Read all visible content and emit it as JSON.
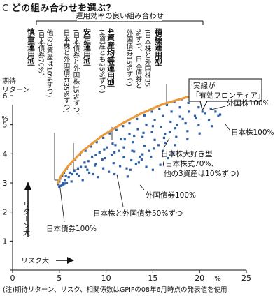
{
  "heading": {
    "letter": "C",
    "text": "どの組み合わせを選ぶ？"
  },
  "note": "(注)期待リターン、リスク、相関係数はGPIFの08年6月時点の発表値を使用",
  "chart_data": {
    "type": "scatter",
    "ylabel": "期待リターン",
    "yunit": "%",
    "xlabel": "リスク大",
    "xunit": "%",
    "ylabel_direction": "リターン大",
    "xlim": [
      0,
      25
    ],
    "ylim": [
      0,
      6.6
    ],
    "xticks": [
      0,
      5,
      10,
      15,
      20,
      25
    ],
    "yticks": [
      0,
      1,
      2,
      3,
      4,
      5,
      6
    ],
    "bracket_label": "運用効率の良い組み合わせ",
    "frontier_label": [
      "実線が",
      "「有効フロンティア」"
    ],
    "colors": {
      "point": "#2f5fa8",
      "frontier": "#e89a3c"
    },
    "efficient_frontier": [
      [
        4.85,
        3.0
      ],
      [
        5.2,
        3.25
      ],
      [
        6.0,
        3.6
      ],
      [
        7.5,
        4.1
      ],
      [
        9.5,
        4.6
      ],
      [
        11.5,
        5.0
      ],
      [
        13.5,
        5.35
      ],
      [
        16.0,
        5.7
      ],
      [
        19.2,
        6.0
      ]
    ],
    "portfolios": [
      {
        "name": "日本債券100%",
        "x": 4.9,
        "y": 2.95
      },
      {
        "name": "日本株と外国債券50%ずつ",
        "x": 10.8,
        "y": 3.85
      },
      {
        "name": "外国債券100%",
        "x": 11.9,
        "y": 3.2
      },
      {
        "name": "日本株大好き型",
        "x": 16.0,
        "y": 4.5
      },
      {
        "name": "外国株100%",
        "x": 19.3,
        "y": 6.0
      },
      {
        "name": "日本株100%",
        "x": 22.2,
        "y": 5.35
      }
    ],
    "annotations": [
      {
        "title": "慎重運用型",
        "lines": [
          "(日本債券70%、",
          "他の3資産は10%ずつ)"
        ]
      },
      {
        "title": "安定運用型",
        "lines": [
          "(日本債券と外国株15%ずつ、",
          "日本株と外国債券35%ずつ)"
        ]
      },
      {
        "title": "4資産均等運用型",
        "lines": [
          "(4資産とも25%ずつ)"
        ]
      },
      {
        "title": "積極運用型",
        "lines": [
          "(日本株と外国株35",
          "%ずつ、日本債券と",
          "外国債券15%ずつ)"
        ]
      }
    ],
    "callouts": [
      {
        "text": "外国株100%"
      },
      {
        "text": "日本株100%"
      },
      {
        "text": "日本株大好き型",
        "lines": [
          "(日本株式70%、",
          "他の3資産は10%ずつ)"
        ]
      },
      {
        "text": "外国債券100%"
      },
      {
        "text": "日本株と外国債券50%ずつ"
      },
      {
        "text": "日本債券100%"
      }
    ],
    "cloud_points": [
      [
        4.9,
        2.95
      ],
      [
        5.0,
        3.05
      ],
      [
        5.1,
        3.15
      ],
      [
        5.3,
        3.25
      ],
      [
        5.5,
        3.35
      ],
      [
        5.8,
        3.5
      ],
      [
        6.2,
        3.65
      ],
      [
        6.7,
        3.8
      ],
      [
        7.2,
        3.95
      ],
      [
        7.8,
        4.1
      ],
      [
        8.4,
        4.25
      ],
      [
        9.0,
        4.4
      ],
      [
        9.7,
        4.55
      ],
      [
        10.4,
        4.7
      ],
      [
        11.1,
        4.82
      ],
      [
        11.8,
        4.95
      ],
      [
        12.5,
        5.05
      ],
      [
        13.3,
        5.2
      ],
      [
        14.1,
        5.32
      ],
      [
        14.9,
        5.45
      ],
      [
        15.7,
        5.55
      ],
      [
        16.5,
        5.68
      ],
      [
        17.3,
        5.78
      ],
      [
        18.1,
        5.88
      ],
      [
        18.9,
        5.96
      ],
      [
        5.4,
        3.0
      ],
      [
        6.0,
        3.2
      ],
      [
        6.6,
        3.4
      ],
      [
        7.3,
        3.55
      ],
      [
        8.1,
        3.75
      ],
      [
        8.9,
        3.95
      ],
      [
        9.8,
        4.15
      ],
      [
        10.7,
        4.35
      ],
      [
        11.6,
        4.5
      ],
      [
        12.5,
        4.68
      ],
      [
        13.4,
        4.85
      ],
      [
        14.3,
        5.0
      ],
      [
        15.2,
        5.15
      ],
      [
        16.1,
        5.3
      ],
      [
        17.0,
        5.45
      ],
      [
        17.9,
        5.6
      ],
      [
        18.8,
        5.75
      ],
      [
        6.3,
        3.05
      ],
      [
        7.1,
        3.25
      ],
      [
        8.0,
        3.45
      ],
      [
        8.9,
        3.65
      ],
      [
        9.9,
        3.85
      ],
      [
        10.9,
        4.05
      ],
      [
        11.9,
        4.22
      ],
      [
        12.9,
        4.4
      ],
      [
        13.9,
        4.58
      ],
      [
        14.9,
        4.75
      ],
      [
        15.9,
        4.92
      ],
      [
        16.9,
        5.1
      ],
      [
        17.9,
        5.28
      ],
      [
        18.9,
        5.45
      ],
      [
        19.9,
        5.6
      ],
      [
        7.5,
        3.1
      ],
      [
        8.6,
        3.3
      ],
      [
        9.7,
        3.5
      ],
      [
        10.8,
        3.68
      ],
      [
        11.9,
        3.88
      ],
      [
        13.0,
        4.08
      ],
      [
        14.1,
        4.28
      ],
      [
        15.2,
        4.48
      ],
      [
        16.3,
        4.68
      ],
      [
        17.4,
        4.88
      ],
      [
        18.5,
        5.05
      ],
      [
        19.6,
        5.22
      ],
      [
        20.6,
        5.38
      ],
      [
        9.1,
        3.2
      ],
      [
        10.3,
        3.38
      ],
      [
        11.5,
        3.58
      ],
      [
        12.7,
        3.78
      ],
      [
        13.9,
        3.98
      ],
      [
        15.1,
        4.18
      ],
      [
        16.3,
        4.38
      ],
      [
        17.5,
        4.58
      ],
      [
        18.7,
        4.78
      ],
      [
        19.9,
        4.98
      ],
      [
        21.0,
        5.15
      ],
      [
        10.9,
        3.3
      ],
      [
        12.2,
        3.5
      ],
      [
        13.5,
        3.7
      ],
      [
        14.8,
        3.9
      ],
      [
        16.1,
        4.1
      ],
      [
        17.4,
        4.3
      ],
      [
        18.7,
        4.5
      ],
      [
        20.0,
        4.7
      ],
      [
        21.3,
        4.95
      ],
      [
        22.2,
        5.35
      ],
      [
        12.3,
        3.22
      ],
      [
        12.6,
        3.45
      ],
      [
        13.2,
        3.65
      ],
      [
        13.8,
        3.8
      ],
      [
        14.3,
        3.55
      ],
      [
        15.0,
        3.45
      ],
      [
        15.8,
        3.62
      ],
      [
        16.6,
        3.85
      ],
      [
        17.2,
        4.0
      ],
      [
        5.2,
        2.9
      ],
      [
        5.6,
        3.1
      ],
      [
        6.4,
        3.3
      ],
      [
        7.0,
        3.5
      ],
      [
        7.7,
        3.7
      ],
      [
        8.5,
        3.9
      ],
      [
        9.3,
        4.05
      ],
      [
        10.1,
        4.22
      ],
      [
        11.0,
        4.3
      ],
      [
        12.0,
        4.5
      ],
      [
        13.0,
        4.62
      ],
      [
        14.0,
        4.72
      ],
      [
        15.0,
        4.95
      ],
      [
        5.0,
        2.85
      ],
      [
        5.15,
        2.9
      ],
      [
        5.3,
        2.92
      ],
      [
        5.45,
        2.95
      ],
      [
        5.6,
        2.98
      ],
      [
        5.8,
        3.0
      ],
      [
        19.2,
        6.0
      ],
      [
        20.0,
        5.85
      ],
      [
        20.6,
        5.7
      ],
      [
        21.2,
        5.55
      ],
      [
        21.7,
        5.45
      ],
      [
        22.0,
        5.3
      ],
      [
        20.3,
        5.45
      ],
      [
        19.5,
        5.3
      ],
      [
        18.2,
        5.2
      ],
      [
        17.6,
        5.0
      ],
      [
        16.8,
        4.75
      ],
      [
        16.2,
        4.55
      ],
      [
        15.6,
        4.3
      ],
      [
        14.6,
        4.1
      ],
      [
        13.6,
        3.9
      ],
      [
        12.8,
        4.1
      ],
      [
        11.4,
        4.1
      ],
      [
        10.6,
        3.95
      ],
      [
        9.6,
        3.8
      ],
      [
        8.8,
        3.6
      ],
      [
        8.2,
        3.35
      ],
      [
        7.8,
        3.55
      ],
      [
        6.9,
        3.3
      ],
      [
        6.1,
        3.35
      ],
      [
        5.7,
        3.25
      ]
    ]
  }
}
